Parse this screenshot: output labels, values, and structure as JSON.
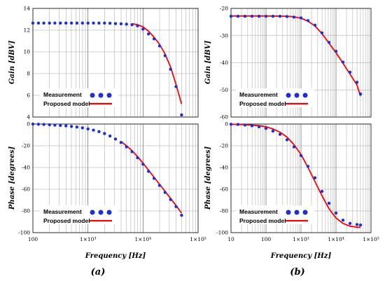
{
  "colors": {
    "measurement": "#1f2fd6",
    "model": "#ff0000",
    "grid": "#999999"
  },
  "legend": {
    "measurement": "Measurement",
    "model": "Proposed model"
  },
  "chart_data": [
    {
      "type": "line",
      "panel": "a-gain",
      "ylabel": "Gain [dBV]",
      "xscale": "log",
      "xlim": [
        100,
        100000
      ],
      "ylim": [
        4,
        14
      ],
      "yticks": [
        "4",
        "6",
        "8",
        "10",
        "12",
        "14"
      ],
      "series": [
        {
          "name": "Measurement",
          "style": "points",
          "x": [
            100,
            126,
            158,
            200,
            251,
            316,
            398,
            501,
            631,
            794,
            1000,
            1259,
            1585,
            1995,
            2512,
            3162,
            3981,
            5012,
            6310,
            7943,
            10000,
            12589,
            15849,
            19953,
            25119,
            31623,
            39811,
            50119
          ],
          "y": [
            12.65,
            12.65,
            12.65,
            12.65,
            12.65,
            12.65,
            12.65,
            12.65,
            12.65,
            12.65,
            12.65,
            12.65,
            12.65,
            12.65,
            12.63,
            12.6,
            12.58,
            12.55,
            12.5,
            12.4,
            12.1,
            11.65,
            11.2,
            10.55,
            9.65,
            8.4,
            6.8,
            4.2
          ]
        },
        {
          "name": "Proposed model",
          "style": "line",
          "x": [
            6310,
            7943,
            10000,
            12589,
            15849,
            19953,
            25119,
            31623,
            39811,
            50119
          ],
          "y": [
            12.6,
            12.5,
            12.3,
            11.9,
            11.35,
            10.7,
            9.8,
            8.6,
            7.0,
            5.2
          ]
        }
      ]
    },
    {
      "type": "line",
      "panel": "a-phase",
      "ylabel": "Phase [degrees]",
      "xlabel": "Frequency [Hz]",
      "xscale": "log",
      "xlim": [
        100,
        100000
      ],
      "ylim": [
        -100,
        0
      ],
      "yticks": [
        "-100",
        "-80",
        "-60",
        "-40",
        "-20",
        "0"
      ],
      "xticks": [
        "100",
        "1×10³",
        "1×10⁴",
        "1×10⁵"
      ],
      "series": [
        {
          "name": "Measurement",
          "style": "points",
          "x": [
            100,
            126,
            158,
            200,
            251,
            316,
            398,
            501,
            631,
            794,
            1000,
            1259,
            1585,
            1995,
            2512,
            3162,
            3981,
            5012,
            6310,
            7943,
            10000,
            12589,
            15849,
            19953,
            25119,
            31623,
            39811,
            50119
          ],
          "y": [
            0,
            -0.2,
            -0.4,
            -0.7,
            -1,
            -1.3,
            -1.7,
            -2.2,
            -2.8,
            -3.5,
            -4.5,
            -5.6,
            -7,
            -8.8,
            -11,
            -13.8,
            -17,
            -21,
            -25.5,
            -31,
            -37,
            -43.5,
            -50,
            -56.5,
            -63,
            -69.5,
            -76,
            -84
          ]
        },
        {
          "name": "Proposed model",
          "style": "line",
          "x": [
            3981,
            5012,
            6310,
            7943,
            10000,
            12589,
            15849,
            19953,
            25119,
            31623,
            39811,
            50119
          ],
          "y": [
            -16,
            -20,
            -24.5,
            -30,
            -36,
            -42.5,
            -49,
            -55.5,
            -62,
            -68.5,
            -75,
            -82
          ]
        }
      ]
    },
    {
      "type": "line",
      "panel": "b-gain",
      "ylabel": "Gain [dBV]",
      "xscale": "log",
      "xlim": [
        10,
        100000
      ],
      "ylim": [
        -60,
        -20
      ],
      "yticks": [
        "-60",
        "-50",
        "-40",
        "-30",
        "-20"
      ],
      "series": [
        {
          "name": "Measurement",
          "style": "points",
          "x": [
            10,
            15.8,
            25.1,
            39.8,
            63.1,
            100,
            158,
            251,
            398,
            631,
            1000,
            1585,
            2512,
            3981,
            6310,
            10000,
            15849,
            25119,
            39811,
            50119
          ],
          "y": [
            -22.9,
            -22.9,
            -22.9,
            -22.9,
            -22.9,
            -22.9,
            -22.9,
            -22.9,
            -23,
            -23.2,
            -23.5,
            -24.5,
            -26.2,
            -29,
            -32.5,
            -35.8,
            -39.8,
            -43.5,
            -47.2,
            -51.5
          ]
        },
        {
          "name": "Proposed model",
          "style": "line",
          "x": [
            10,
            100,
            398,
            631,
            1000,
            1585,
            2512,
            3981,
            6310,
            10000,
            15849,
            25119,
            39811,
            50119
          ],
          "y": [
            -22.8,
            -22.8,
            -22.9,
            -23.1,
            -23.6,
            -24.7,
            -26.5,
            -29.3,
            -32.8,
            -36.3,
            -40.2,
            -44.2,
            -48.2,
            -52.3
          ]
        }
      ]
    },
    {
      "type": "line",
      "panel": "b-phase",
      "ylabel": "Phase [degrees]",
      "xlabel": "Frequency [Hz]",
      "xscale": "log",
      "xlim": [
        10,
        100000
      ],
      "ylim": [
        -100,
        0
      ],
      "yticks": [
        "-100",
        "-80",
        "-60",
        "-40",
        "-20",
        "0"
      ],
      "xticks": [
        "10",
        "100",
        "1×10³",
        "1×10⁴",
        "1×10⁵"
      ],
      "series": [
        {
          "name": "Measurement",
          "style": "points",
          "x": [
            10,
            15.8,
            25.1,
            39.8,
            63.1,
            100,
            158,
            251,
            398,
            631,
            1000,
            1585,
            2512,
            3981,
            6310,
            10000,
            15849,
            25119,
            39811,
            50119
          ],
          "y": [
            -0.2,
            -0.4,
            -0.9,
            -1.6,
            -2.5,
            -4,
            -6.5,
            -9.5,
            -14.5,
            -21,
            -29,
            -39,
            -49.5,
            -62,
            -73,
            -82,
            -88.5,
            -91.5,
            -92.5,
            -93
          ]
        },
        {
          "name": "Proposed model",
          "style": "line",
          "x": [
            10,
            25.1,
            63.1,
            100,
            158,
            251,
            398,
            631,
            1000,
            1585,
            2512,
            3981,
            6310,
            10000,
            15849,
            25119,
            39811,
            50119
          ],
          "y": [
            -0.2,
            -0.5,
            -1.5,
            -2.5,
            -4.5,
            -7.5,
            -12,
            -19,
            -28,
            -40,
            -53,
            -66,
            -78,
            -86.5,
            -91.5,
            -94,
            -95,
            -95
          ]
        }
      ]
    }
  ],
  "subfigure_labels": [
    "(a)",
    "(b)"
  ]
}
